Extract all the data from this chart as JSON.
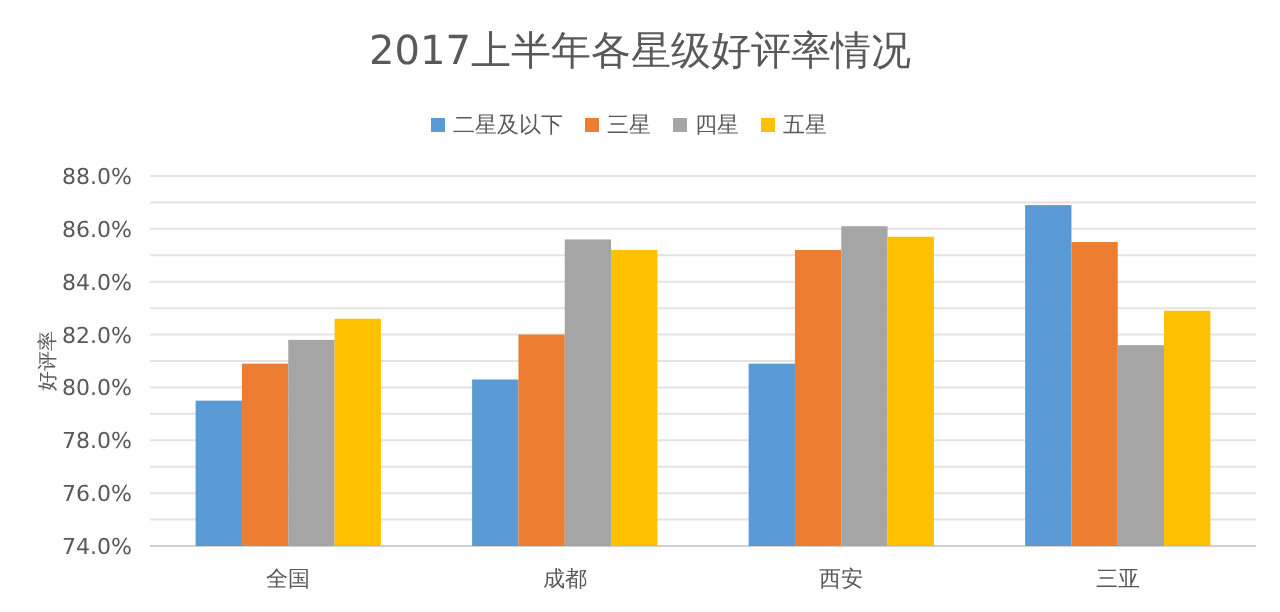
{
  "chart_data": {
    "type": "bar",
    "title": "2017上半年各星级好评率情况",
    "ylabel": "好评率",
    "categories": [
      "全国",
      "成都",
      "西安",
      "三亚"
    ],
    "series": [
      {
        "name": "二星及以下",
        "color": "#5b9bd5",
        "values": [
          79.5,
          80.3,
          80.9,
          86.9
        ]
      },
      {
        "name": "三星",
        "color": "#ed7d31",
        "values": [
          80.9,
          82.0,
          85.2,
          85.5
        ]
      },
      {
        "name": "四星",
        "color": "#a5a5a5",
        "values": [
          81.8,
          85.6,
          86.1,
          81.6
        ]
      },
      {
        "name": "五星",
        "color": "#ffc000",
        "values": [
          82.6,
          85.2,
          85.7,
          82.9
        ]
      }
    ],
    "ylim": [
      74,
      88
    ],
    "yticks": [
      {
        "value": 74,
        "label": "74.0%"
      },
      {
        "value": 75,
        "label": null
      },
      {
        "value": 76,
        "label": "76.0%"
      },
      {
        "value": 77,
        "label": null
      },
      {
        "value": 78,
        "label": "78.0%"
      },
      {
        "value": 79,
        "label": null
      },
      {
        "value": 80,
        "label": "80.0%"
      },
      {
        "value": 81,
        "label": null
      },
      {
        "value": 82,
        "label": "82.0%"
      },
      {
        "value": 83,
        "label": null
      },
      {
        "value": 84,
        "label": "84.0%"
      },
      {
        "value": 85,
        "label": null
      },
      {
        "value": 86,
        "label": "86.0%"
      },
      {
        "value": 87,
        "label": null
      },
      {
        "value": 88,
        "label": "88.0%"
      }
    ],
    "grid": "y",
    "legend": "top"
  }
}
